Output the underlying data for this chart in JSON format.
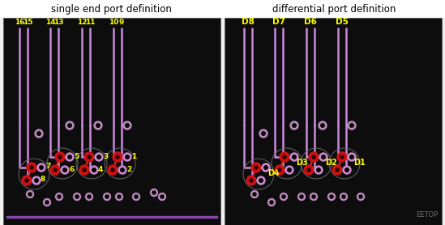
{
  "fig_width": 5.49,
  "fig_height": 2.78,
  "dpi": 100,
  "bg_color": "#f0f0f0",
  "panel_bg": "#111111",
  "title_left": "single end port definition",
  "title_right": "differential port definition",
  "title_fontsize": 8.5,
  "trace_color": "#cc88dd",
  "trace_lw": 1.8,
  "label_color": "#ffff00",
  "watermark": "EETOP"
}
